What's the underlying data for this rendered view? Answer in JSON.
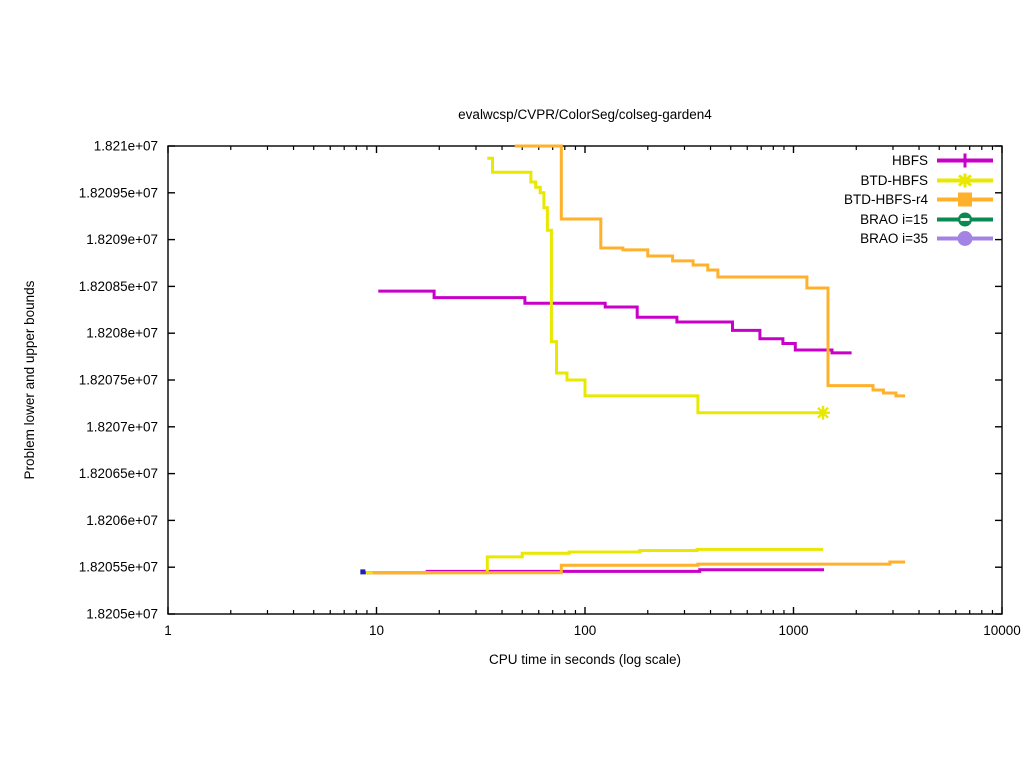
{
  "title": "evalwcsp/CVPR/ColorSeg/colseg-garden4",
  "axes": {
    "x_label": "CPU time in seconds (log scale)",
    "y_label": "Problem lower and upper bounds"
  },
  "legend": {
    "position": "top-right",
    "items": [
      {
        "label": "HBFS",
        "color": "#c800c8",
        "marker": "plus"
      },
      {
        "label": "BTD-HBFS",
        "color": "#e8e800",
        "marker": "asterisk"
      },
      {
        "label": "BTD-HBFS-r4",
        "color": "#ffb12c",
        "marker": "square"
      },
      {
        "label": "BRAO i=15",
        "color": "#0a8a50",
        "marker": "circle-dash"
      },
      {
        "label": "BRAO i=35",
        "color": "#a384e4",
        "marker": "circle"
      }
    ]
  },
  "chart_data": {
    "type": "line",
    "subtype": "step-bounds",
    "title": "evalwcsp/CVPR/ColorSeg/colseg-garden4",
    "xlabel": "CPU time in seconds (log scale)",
    "ylabel": "Problem lower and upper bounds",
    "x_scale": "log",
    "xlim": [
      1,
      10000
    ],
    "ylim": [
      18205000,
      18210000
    ],
    "grid": false,
    "x_ticks": [
      {
        "v": 1,
        "label": "1"
      },
      {
        "v": 10,
        "label": "10"
      },
      {
        "v": 100,
        "label": "100"
      },
      {
        "v": 1000,
        "label": "1000"
      },
      {
        "v": 10000,
        "label": "10000"
      }
    ],
    "y_ticks": [
      {
        "v": 18205000,
        "label": "1.8205e+07"
      },
      {
        "v": 18205500,
        "label": "1.82055e+07"
      },
      {
        "v": 18206000,
        "label": "1.8206e+07"
      },
      {
        "v": 18206500,
        "label": "1.82065e+07"
      },
      {
        "v": 18207000,
        "label": "1.8207e+07"
      },
      {
        "v": 18207500,
        "label": "1.82075e+07"
      },
      {
        "v": 18208000,
        "label": "1.8208e+07"
      },
      {
        "v": 18208500,
        "label": "1.82085e+07"
      },
      {
        "v": 18209000,
        "label": "1.8209e+07"
      },
      {
        "v": 18209500,
        "label": "1.82095e+07"
      },
      {
        "v": 18210000,
        "label": "1.821e+07"
      }
    ],
    "series": [
      {
        "name": "HBFS upper bound",
        "color": "#c800c8",
        "width": 3,
        "points": [
          [
            10.2,
            18208450
          ],
          [
            18.9,
            18208450
          ],
          [
            18.9,
            18208380
          ],
          [
            51.5,
            18208380
          ],
          [
            51.5,
            18208320
          ],
          [
            125,
            18208320
          ],
          [
            125,
            18208280
          ],
          [
            178,
            18208280
          ],
          [
            178,
            18208170
          ],
          [
            276,
            18208170
          ],
          [
            276,
            18208120
          ],
          [
            510,
            18208120
          ],
          [
            510,
            18208030
          ],
          [
            690,
            18208030
          ],
          [
            690,
            18207940
          ],
          [
            890,
            18207940
          ],
          [
            890,
            18207890
          ],
          [
            1020,
            18207890
          ],
          [
            1020,
            18207820
          ],
          [
            1530,
            18207820
          ],
          [
            1530,
            18207790
          ],
          [
            1900,
            18207790
          ]
        ]
      },
      {
        "name": "HBFS lower bound",
        "color": "#c800c8",
        "width": 3,
        "points": [
          [
            8.8,
            18205440
          ],
          [
            17.5,
            18205440
          ],
          [
            17.5,
            18205455
          ],
          [
            355,
            18205455
          ],
          [
            355,
            18205472
          ],
          [
            1400,
            18205472
          ]
        ]
      },
      {
        "name": "BTD-HBFS upper bound",
        "color": "#e8e800",
        "width": 3,
        "points": [
          [
            34,
            18209870
          ],
          [
            36,
            18209870
          ],
          [
            36,
            18209720
          ],
          [
            55,
            18209720
          ],
          [
            55,
            18209615
          ],
          [
            58,
            18209615
          ],
          [
            58,
            18209560
          ],
          [
            61,
            18209560
          ],
          [
            61,
            18209500
          ],
          [
            63.5,
            18209500
          ],
          [
            63.5,
            18209340
          ],
          [
            66,
            18209340
          ],
          [
            66,
            18209100
          ],
          [
            69,
            18209100
          ],
          [
            69,
            18207910
          ],
          [
            73,
            18207910
          ],
          [
            73,
            18207575
          ],
          [
            82,
            18207575
          ],
          [
            82,
            18207500
          ],
          [
            100,
            18207500
          ],
          [
            100,
            18207330
          ],
          [
            348,
            18207330
          ],
          [
            348,
            18207150
          ],
          [
            1385,
            18207150
          ]
        ]
      },
      {
        "name": "BTD-HBFS lower bound",
        "color": "#e8e800",
        "width": 3,
        "points": [
          [
            8.9,
            18205440
          ],
          [
            34,
            18205440
          ],
          [
            34,
            18205610
          ],
          [
            50,
            18205610
          ],
          [
            50,
            18205650
          ],
          [
            84,
            18205650
          ],
          [
            84,
            18205662
          ],
          [
            183,
            18205662
          ],
          [
            183,
            18205678
          ],
          [
            345,
            18205678
          ],
          [
            345,
            18205690
          ],
          [
            1385,
            18205690
          ]
        ]
      },
      {
        "name": "BTD-HBFS-r4 upper bound",
        "color": "#ffb12c",
        "width": 3,
        "points": [
          [
            46,
            18210000
          ],
          [
            77,
            18210000
          ],
          [
            77,
            18209220
          ],
          [
            119,
            18209220
          ],
          [
            119,
            18208910
          ],
          [
            152,
            18208910
          ],
          [
            152,
            18208890
          ],
          [
            200,
            18208890
          ],
          [
            200,
            18208825
          ],
          [
            263,
            18208825
          ],
          [
            263,
            18208772
          ],
          [
            330,
            18208772
          ],
          [
            330,
            18208729
          ],
          [
            388,
            18208729
          ],
          [
            388,
            18208675
          ],
          [
            434,
            18208675
          ],
          [
            434,
            18208600
          ],
          [
            1160,
            18208600
          ],
          [
            1160,
            18208483
          ],
          [
            1463,
            18208483
          ],
          [
            1463,
            18207440
          ],
          [
            2405,
            18207440
          ],
          [
            2405,
            18207393
          ],
          [
            2700,
            18207393
          ],
          [
            2700,
            18207361
          ],
          [
            3100,
            18207361
          ],
          [
            3100,
            18207330
          ],
          [
            3430,
            18207330
          ]
        ]
      },
      {
        "name": "BTD-HBFS-r4 lower bound",
        "color": "#ffb12c",
        "width": 3,
        "points": [
          [
            9.6,
            18205440
          ],
          [
            77,
            18205440
          ],
          [
            77,
            18205520
          ],
          [
            348,
            18205520
          ],
          [
            348,
            18205533
          ],
          [
            2900,
            18205533
          ],
          [
            2900,
            18205556
          ],
          [
            3430,
            18205556
          ]
        ]
      },
      {
        "name": "BRAO i=15",
        "color": "#0a8a50",
        "width": 3,
        "points": [
          [
            8.6,
            18205450
          ]
        ]
      },
      {
        "name": "BRAO i=35",
        "color": "#a384e4",
        "width": 3,
        "points": [
          [
            8.6,
            18205450
          ]
        ]
      }
    ],
    "point_markers": [
      {
        "name": "btd-hbfs-end-asterisk",
        "x": 1385,
        "y": 18207150,
        "shape": "asterisk",
        "color": "#e8e800",
        "size": 14
      },
      {
        "name": "brao-start-square",
        "x": 8.6,
        "y": 18205450,
        "shape": "square",
        "color": "#2121b5",
        "size": 5
      }
    ]
  }
}
